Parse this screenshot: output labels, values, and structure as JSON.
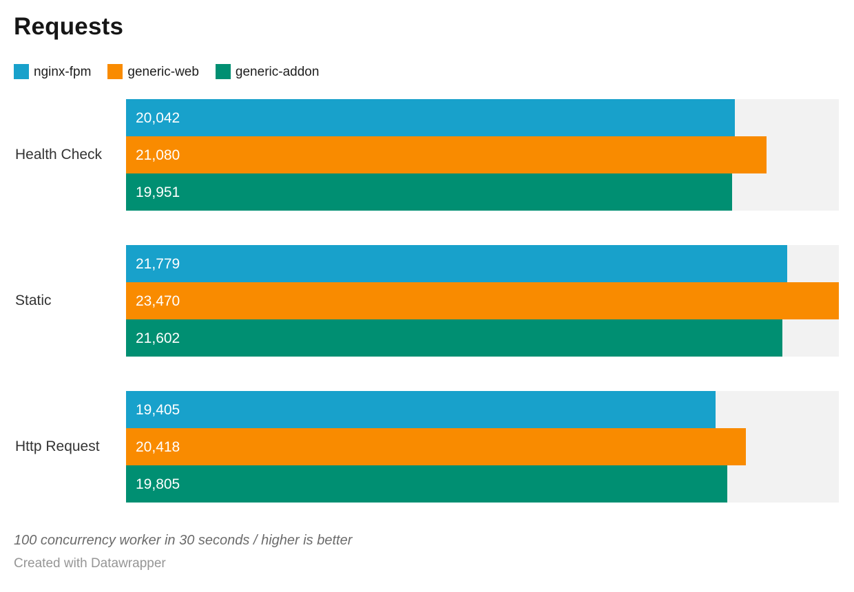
{
  "chart_data": {
    "type": "bar",
    "orientation": "horizontal",
    "title": "Requests",
    "categories": [
      "Health Check",
      "Static",
      "Http Request"
    ],
    "series": [
      {
        "name": "nginx-fpm",
        "color": "#18a1cb",
        "values": [
          20042,
          21779,
          19405
        ],
        "labels": [
          "20,042",
          "21,779",
          "19,405"
        ]
      },
      {
        "name": "generic-web",
        "color": "#f98b00",
        "values": [
          21080,
          23470,
          20418
        ],
        "labels": [
          "21,080",
          "23,470",
          "20,418"
        ]
      },
      {
        "name": "generic-addon",
        "color": "#008f72",
        "values": [
          19951,
          21602,
          19805
        ],
        "labels": [
          "19,951",
          "21,602",
          "19,805"
        ]
      }
    ],
    "xlim": [
      0,
      23470
    ],
    "value_labels_inside_bars": true,
    "track_color": "#f2f2f2",
    "grid": false,
    "legend_position": "top-left"
  },
  "footer": {
    "note": "100 concurrency worker in 30 seconds / higher is better",
    "attribution": "Created with Datawrapper"
  }
}
